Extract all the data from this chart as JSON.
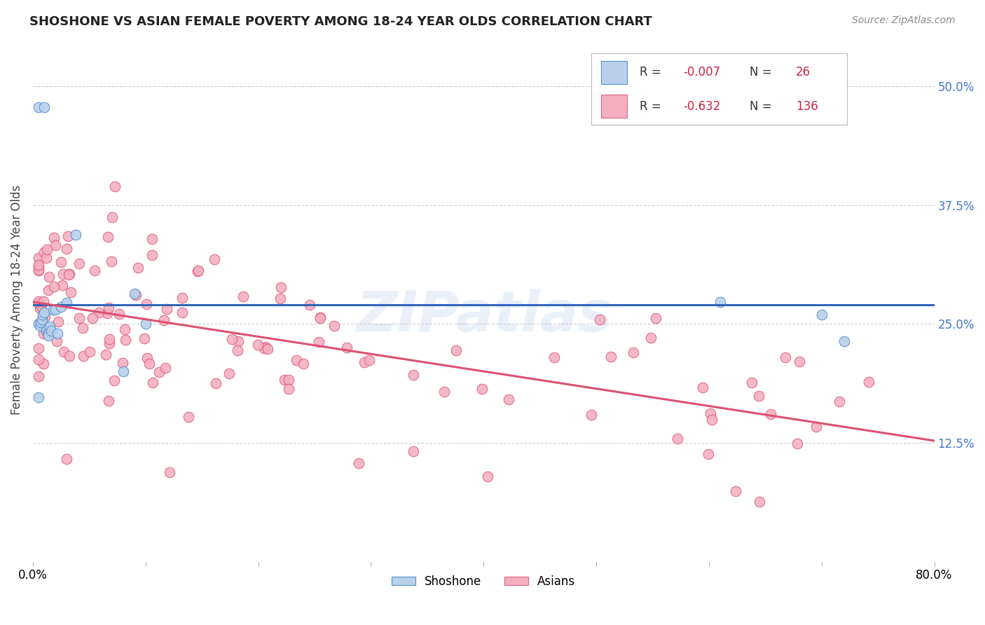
{
  "title": "SHOSHONE VS ASIAN FEMALE POVERTY AMONG 18-24 YEAR OLDS CORRELATION CHART",
  "source": "Source: ZipAtlas.com",
  "ylabel": "Female Poverty Among 18-24 Year Olds",
  "xlim": [
    0.0,
    0.8
  ],
  "ylim": [
    0.0,
    0.55
  ],
  "x_tick_positions": [
    0.0,
    0.1,
    0.2,
    0.3,
    0.4,
    0.5,
    0.6,
    0.7,
    0.8
  ],
  "x_tick_labels": [
    "0.0%",
    "",
    "",
    "",
    "",
    "",
    "",
    "",
    "80.0%"
  ],
  "y_ticks_right": [
    0.0,
    0.125,
    0.25,
    0.375,
    0.5
  ],
  "y_tick_labels_right": [
    "",
    "12.5%",
    "25.0%",
    "37.5%",
    "50.0%"
  ],
  "legend_blue_r": "-0.007",
  "legend_blue_n": "26",
  "legend_pink_r": "-0.632",
  "legend_pink_n": "136",
  "shoshone_face_color": "#b8d0ea",
  "asian_face_color": "#f4afc0",
  "shoshone_edge_color": "#5590d0",
  "asian_edge_color": "#e06080",
  "shoshone_line_color": "#3366bb",
  "asian_line_color": "#e05070",
  "watermark": "ZIPatlas",
  "background_color": "#ffffff",
  "grid_color": "#cccccc",
  "title_color": "#222222",
  "source_color": "#888888",
  "ylabel_color": "#444444",
  "right_tick_color": "#4477cc"
}
